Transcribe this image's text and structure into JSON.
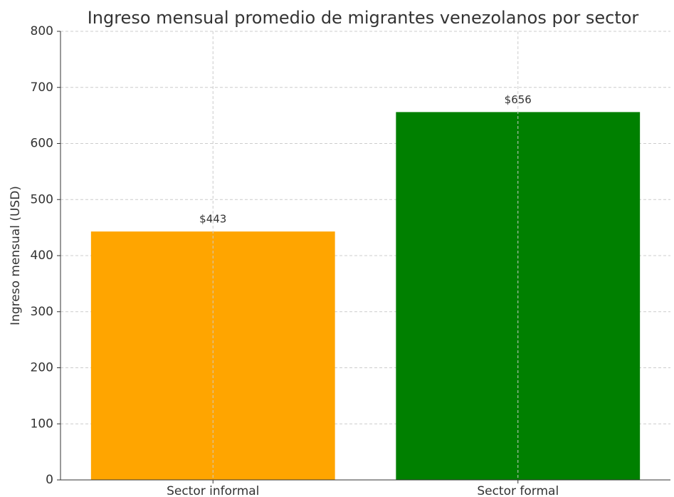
{
  "chart_data": {
    "type": "bar",
    "title": "Ingreso mensual promedio de migrantes venezolanos por sector",
    "ylabel": "Ingreso mensual (USD)",
    "categories": [
      "Sector informal",
      "Sector formal"
    ],
    "values": [
      443,
      656
    ],
    "value_labels": [
      "$443",
      "$656"
    ],
    "colors": [
      "#ffa500",
      "#008000"
    ],
    "ylim": [
      0,
      800
    ],
    "yticks": [
      0,
      100,
      200,
      300,
      400,
      500,
      600,
      700,
      800
    ],
    "grid": true
  }
}
